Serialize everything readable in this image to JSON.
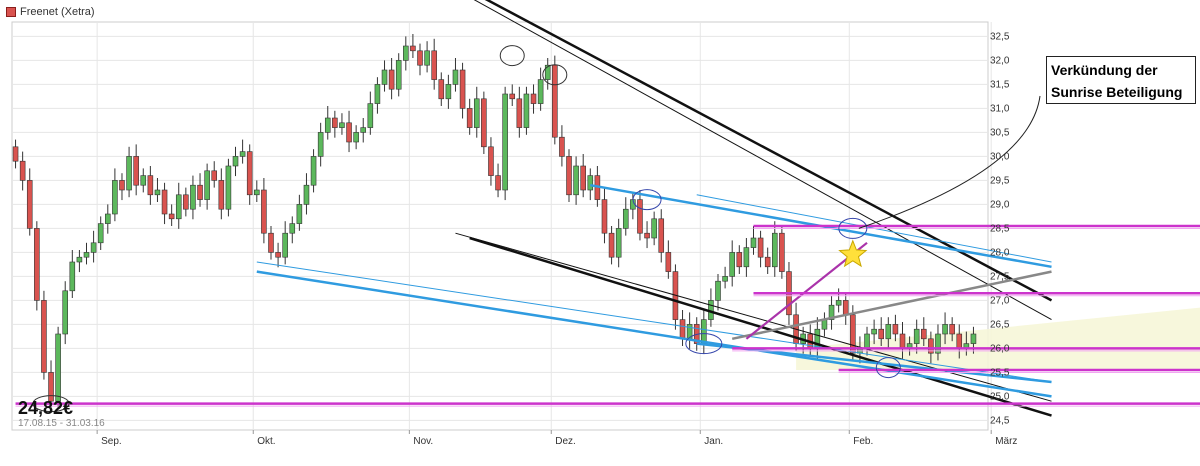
{
  "legend": {
    "label": "Freenet (Xetra)",
    "color": "#d9534f"
  },
  "annotation": {
    "line1": "Verkündung der",
    "line2": "Sunrise Beteiligung"
  },
  "price_tag": "24,82€",
  "date_range": "17.08.15 - 31.03.16",
  "colors": {
    "up": "#5cb85c",
    "down": "#d9534f",
    "blue_trend": "#2f9be0",
    "magenta": "#cc33cc",
    "black": "#111111"
  },
  "chart_data": {
    "type": "candlestick",
    "title": "",
    "xlabel": "",
    "ylabel": "",
    "ylim": [
      24.3,
      32.8
    ],
    "yticks": [
      "32,5",
      "32,0",
      "31,5",
      "31,0",
      "30,5",
      "30,0",
      "29,5",
      "29,0",
      "28,5",
      "28,0",
      "27,5",
      "27,0",
      "26,5",
      "26,0",
      "25,5",
      "25,0",
      "24,5"
    ],
    "ytick_values": [
      32.5,
      32.0,
      31.5,
      31.0,
      30.5,
      30.0,
      29.5,
      29.0,
      28.5,
      28.0,
      27.5,
      27.0,
      26.5,
      26.0,
      25.5,
      25.0,
      24.5
    ],
    "months": [
      "Sep.",
      "Okt.",
      "Nov.",
      "Dez.",
      "Jan.",
      "Feb.",
      "März"
    ],
    "month_starts": [
      12,
      34,
      56,
      76,
      97,
      118,
      138
    ],
    "horizontal_levels": [
      28.55,
      27.15,
      26.0,
      25.55,
      24.85
    ],
    "series": [
      {
        "values": [
          29.9,
          29.5,
          28.5,
          27.0,
          25.5,
          24.9,
          26.3,
          27.2,
          27.8,
          27.9,
          28.0,
          28.2,
          28.6,
          28.8,
          29.5,
          29.3,
          30.0,
          29.4,
          29.6,
          29.2,
          29.3,
          28.8,
          28.7,
          29.2,
          28.9,
          29.4,
          29.1,
          29.7,
          29.5,
          28.9,
          29.8,
          30.0,
          30.1,
          29.2,
          29.3,
          28.4,
          28.0,
          27.9,
          28.4,
          28.6,
          29.0,
          29.4,
          30.0,
          30.5,
          30.8,
          30.6,
          30.7,
          30.3,
          30.5,
          30.6,
          31.1,
          31.5,
          31.8,
          31.4,
          32.0,
          32.3,
          32.2,
          31.9,
          32.2,
          31.6,
          31.2,
          31.5,
          31.8,
          31.0,
          30.6,
          31.2,
          30.2,
          29.6,
          29.3,
          31.3,
          31.2,
          30.6,
          31.3,
          31.1,
          31.6,
          31.9,
          30.4,
          30.0,
          29.2,
          29.8,
          29.3,
          29.6,
          29.1,
          28.4,
          27.9,
          28.5,
          28.9,
          29.1,
          28.4,
          28.3,
          28.7,
          28.0,
          27.6,
          26.6,
          26.2,
          26.5,
          26.1,
          26.6,
          27.0,
          27.4,
          27.5,
          28.0,
          27.7,
          28.1,
          28.3,
          27.9,
          27.7,
          28.4,
          27.6,
          26.7,
          26.1,
          26.3,
          26.0,
          26.4,
          26.6,
          26.9,
          27.0,
          26.7,
          25.9,
          26.0,
          26.3,
          26.4,
          26.2,
          26.5,
          26.3,
          26.0,
          26.1,
          26.4,
          26.2,
          25.9,
          26.3,
          26.5,
          26.3,
          26.0,
          26.1,
          26.3
        ]
      }
    ]
  }
}
